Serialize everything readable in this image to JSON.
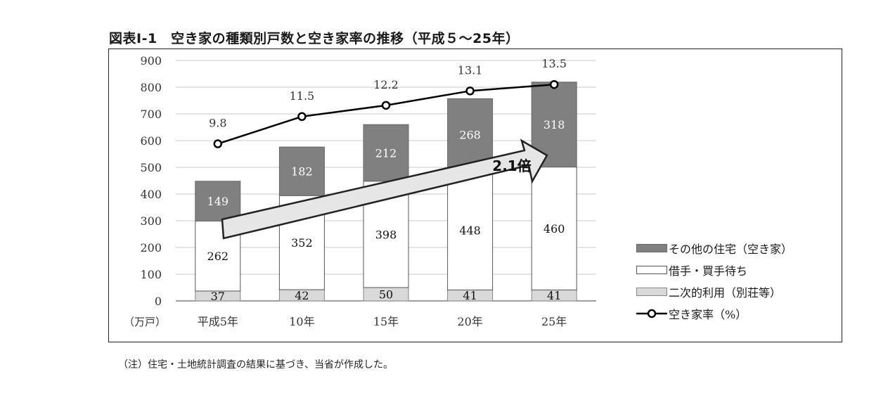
{
  "figure_title": "図表Ⅰ-1　空き家の種類別戸数と空き家率の推移（平成５～25年）",
  "note": "（注）住宅・土地統計調査の結果に基づき、当省が作成した。",
  "y_unit_label": "（万戸）",
  "arrow_label": "2.1倍",
  "chart_data": {
    "type": "bar",
    "stacked": true,
    "categories": [
      "平成5年",
      "10年",
      "15年",
      "20年",
      "25年"
    ],
    "ylim": [
      0,
      900
    ],
    "yticks": [
      0,
      100,
      200,
      300,
      400,
      500,
      600,
      700,
      800,
      900
    ],
    "grid": true,
    "legend_position": "right",
    "series": [
      {
        "name": "二次的利用（別荘等）",
        "values": [
          37,
          42,
          50,
          41,
          41
        ],
        "color": "#d9d9d9"
      },
      {
        "name": "借手・買手待ち",
        "values": [
          262,
          352,
          398,
          448,
          460
        ],
        "color": "#ffffff"
      },
      {
        "name": "その他の住宅（空き家）",
        "values": [
          149,
          182,
          212,
          268,
          318
        ],
        "color": "#808080"
      }
    ],
    "line_series": {
      "name": "空き家率（%）",
      "values": [
        9.8,
        11.5,
        12.2,
        13.1,
        13.5
      ],
      "color": "#000000"
    }
  },
  "legend": [
    {
      "label": "その他の住宅（空き家）",
      "style": "dark"
    },
    {
      "label": "借手・買手待ち",
      "style": "white"
    },
    {
      "label": "二次的利用（別荘等）",
      "style": "light"
    },
    {
      "label": "空き家率（%）",
      "style": "line"
    }
  ]
}
